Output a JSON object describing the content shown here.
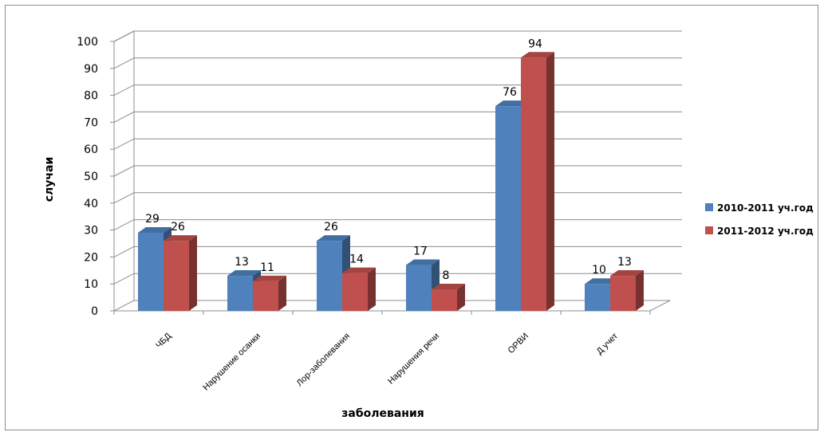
{
  "chart_data": {
    "type": "bar",
    "categories": [
      "ЧБД",
      "Нарушение осанки",
      "Лор-заболевания",
      "Нарушения речи",
      "ОРВИ",
      "Д учет"
    ],
    "series": [
      {
        "name": "2010-2011 уч.год",
        "values": [
          29,
          13,
          26,
          17,
          76,
          10
        ],
        "color": "#4f81bd"
      },
      {
        "name": "2011-2012 уч.год",
        "values": [
          26,
          11,
          14,
          8,
          94,
          13
        ],
        "color": "#c0504d"
      }
    ],
    "title": "",
    "xlabel": "заболевания",
    "ylabel": "случаи",
    "ylim": [
      0,
      100
    ],
    "yticks": [
      0,
      10,
      20,
      30,
      40,
      50,
      60,
      70,
      80,
      90,
      100
    ],
    "grid": true,
    "legend": "right",
    "data_labels": true,
    "style": "3d-clustered-column"
  }
}
